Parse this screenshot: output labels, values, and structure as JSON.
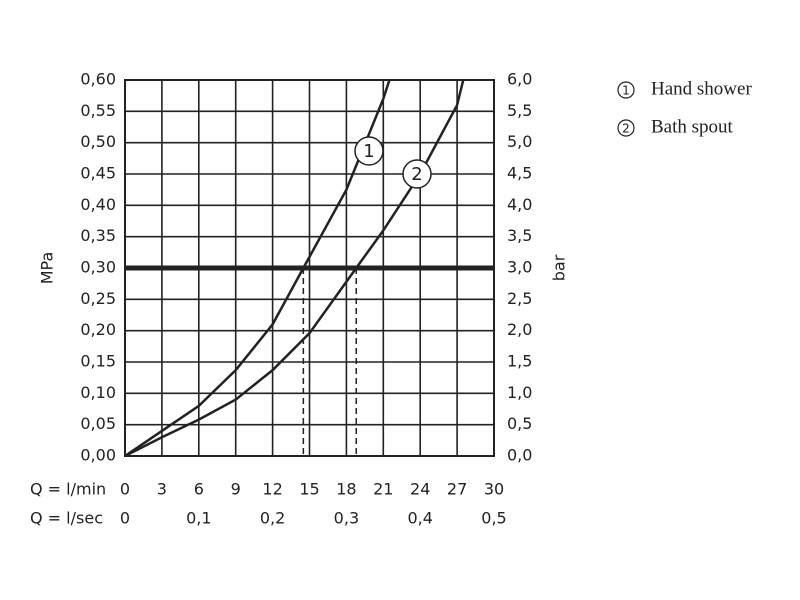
{
  "chart_data": {
    "type": "line",
    "x_label": "Q = l/min",
    "x2_label": "Q = l/sec",
    "y_label": "MPa",
    "y2_label": "bar",
    "xlim": [
      0,
      30
    ],
    "xticks": [
      0,
      3,
      6,
      9,
      12,
      15,
      18,
      21,
      24,
      27,
      30
    ],
    "x2lim": [
      0,
      0.5
    ],
    "x2ticks": [
      0,
      {
        "value": 0.1,
        "label": "0,1"
      },
      {
        "value": 0.2,
        "label": "0,2"
      },
      {
        "value": 0.3,
        "label": "0,3"
      },
      {
        "value": 0.4,
        "label": "0,4"
      },
      {
        "value": 0.5,
        "label": "0,5"
      }
    ],
    "ylim": [
      0,
      0.6
    ],
    "yticks": [
      {
        "value": 0,
        "label": "0,00"
      },
      {
        "value": 0.05,
        "label": "0,05"
      },
      {
        "value": 0.1,
        "label": "0,10"
      },
      {
        "value": 0.15,
        "label": "0,15"
      },
      {
        "value": 0.2,
        "label": "0,20"
      },
      {
        "value": 0.25,
        "label": "0,25"
      },
      {
        "value": 0.3,
        "label": "0,30"
      },
      {
        "value": 0.35,
        "label": "0,35"
      },
      {
        "value": 0.4,
        "label": "0,40"
      },
      {
        "value": 0.45,
        "label": "0,45"
      },
      {
        "value": 0.5,
        "label": "0,50"
      },
      {
        "value": 0.55,
        "label": "0,55"
      },
      {
        "value": 0.6,
        "label": "0,60"
      }
    ],
    "y2lim": [
      0,
      6
    ],
    "y2ticks": [
      {
        "value": 0,
        "label": "0,0"
      },
      {
        "value": 0.5,
        "label": "0,5"
      },
      {
        "value": 1,
        "label": "1,0"
      },
      {
        "value": 1.5,
        "label": "1,5"
      },
      {
        "value": 2,
        "label": "2,0"
      },
      {
        "value": 2.5,
        "label": "2,5"
      },
      {
        "value": 3,
        "label": "3,0"
      },
      {
        "value": 3.5,
        "label": "3,5"
      },
      {
        "value": 4,
        "label": "4,0"
      },
      {
        "value": 4.5,
        "label": "4,5"
      },
      {
        "value": 5,
        "label": "5,0"
      },
      {
        "value": 5.5,
        "label": "5,5"
      },
      {
        "value": 6,
        "label": "6,0"
      }
    ],
    "grid": true,
    "reference_y": 0.3,
    "reference_x": [
      14.5,
      18.8
    ],
    "series": [
      {
        "name": "Hand shower",
        "label": "1",
        "color": "#222222",
        "x": [
          0,
          3,
          6,
          9,
          12,
          14.5,
          18,
          21,
          21.5
        ],
        "values": [
          0,
          0.04,
          0.08,
          0.137,
          0.21,
          0.3,
          0.425,
          0.57,
          0.6
        ]
      },
      {
        "name": "Bath spout",
        "label": "2",
        "color": "#222222",
        "x": [
          0,
          3,
          6,
          9,
          12,
          15,
          18.8,
          21,
          24,
          27,
          27.5
        ],
        "values": [
          0,
          0.03,
          0.058,
          0.09,
          0.137,
          0.196,
          0.3,
          0.36,
          0.45,
          0.56,
          0.6
        ]
      }
    ]
  }
}
